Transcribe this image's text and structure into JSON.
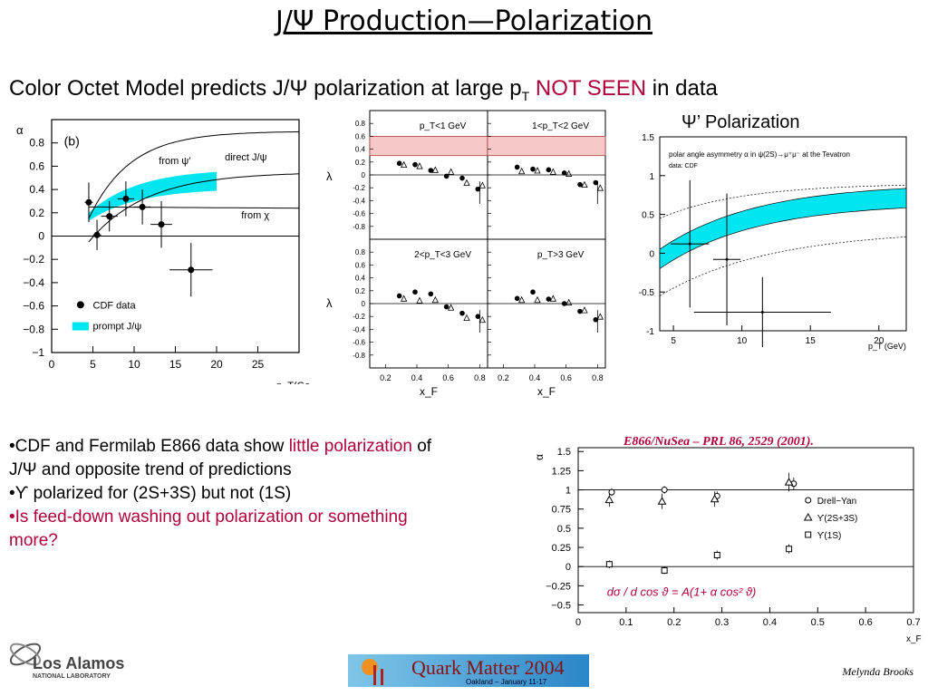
{
  "slide": {
    "title": "J/Ψ Production—Polarization",
    "subtitle_pre": "Color Octet Model predicts J/Ψ polarization at large p",
    "subtitle_sub": "T",
    "subtitle_red": "NOT SEEN",
    "subtitle_post": " in data",
    "psiprime_title": "Ψ’ Polarization",
    "author": "Melynda Brooks",
    "logo_main": "Los Alamos",
    "logo_sub": "NATIONAL LABORATORY",
    "qm_main": "Quark Matter 2004",
    "qm_sub": "Oakland – January 11-17"
  },
  "bullets": {
    "b1_pre": "•CDF and Fermilab E866 data show ",
    "b1_red": "little polarization",
    "b1_post": " of J/Ψ and opposite trend of predictions",
    "b2": "•ϒ polarized for (2S+3S) but not (1S)",
    "b3": "•Is feed-down washing out polarization or something more?"
  },
  "e866_ref": "E866/NuSea – PRL 86, 2529 (2001).",
  "colors": {
    "accent_red": "#b0003a",
    "band": "#00e5f0",
    "pink": "#f7c8c8"
  },
  "chart_data": [
    {
      "type": "scatter",
      "panel_label": "(b)",
      "ylabel": "α",
      "xlabel": "p_T(Ge",
      "xlim": [
        0,
        30
      ],
      "ylim": [
        -1,
        1
      ],
      "xticks": [
        0,
        5,
        10,
        15,
        20,
        25
      ],
      "yticks": [
        -1,
        -0.8,
        -0.6,
        -0.4,
        -0.2,
        0,
        0.2,
        0.4,
        0.6,
        0.8
      ],
      "ytick_labels": [
        "−1",
        "−0.8",
        "−0.6",
        "−0.4",
        "−0.2",
        "0",
        "0.2",
        "0.4",
        "0.6",
        "0.8"
      ],
      "legend": {
        "data": "CDF data",
        "band": "prompt J/ψ"
      },
      "curve_labels": [
        "from ψ′",
        "direct J/ψ",
        "from χ"
      ],
      "points": [
        {
          "x": 4.5,
          "y": 0.29,
          "xerr": 0.5,
          "yerr": 0.17
        },
        {
          "x": 5.5,
          "y": 0.01,
          "xerr": 0.5,
          "yerr": 0.13
        },
        {
          "x": 7.0,
          "y": 0.17,
          "xerr": 1.0,
          "yerr": 0.13
        },
        {
          "x": 9.0,
          "y": 0.32,
          "xerr": 1.0,
          "yerr": 0.15
        },
        {
          "x": 11.0,
          "y": 0.25,
          "xerr": 1.0,
          "yerr": 0.15
        },
        {
          "x": 13.3,
          "y": 0.1,
          "xerr": 1.3,
          "yerr": 0.2
        },
        {
          "x": 16.9,
          "y": -0.29,
          "xerr": 2.6,
          "yerr": 0.23
        }
      ]
    },
    {
      "type": "scatter",
      "ylabel": "λ",
      "xlabel": "x_F",
      "xlim": [
        0.1,
        0.85
      ],
      "ylim": [
        -1,
        1
      ],
      "xticks": [
        0.2,
        0.4,
        0.6,
        0.8
      ],
      "yticks": [
        -0.8,
        -0.6,
        -0.4,
        -0.2,
        0,
        0.2,
        0.4,
        0.6,
        0.8
      ],
      "panels": [
        {
          "label": "p_T<1 GeV",
          "filled": [
            [
              0.3,
              0.18
            ],
            [
              0.4,
              0.16
            ],
            [
              0.5,
              0.07
            ],
            [
              0.6,
              -0.02
            ],
            [
              0.7,
              -0.05
            ],
            [
              0.8,
              -0.22
            ]
          ],
          "open": [
            [
              0.3,
              0.16
            ],
            [
              0.4,
              0.14
            ],
            [
              0.5,
              0.08
            ],
            [
              0.6,
              0.05
            ],
            [
              0.7,
              -0.12
            ],
            [
              0.8,
              -0.16
            ]
          ]
        },
        {
          "label": "1<p_T<2 GeV",
          "filled": [
            [
              0.3,
              0.12
            ],
            [
              0.4,
              0.09
            ],
            [
              0.5,
              0.08
            ],
            [
              0.6,
              0.03
            ],
            [
              0.7,
              -0.15
            ],
            [
              0.8,
              -0.12
            ]
          ],
          "open": [
            [
              0.3,
              0.06
            ],
            [
              0.4,
              0.07
            ],
            [
              0.5,
              0.05
            ],
            [
              0.6,
              0.02
            ],
            [
              0.7,
              -0.15
            ],
            [
              0.8,
              -0.2
            ]
          ]
        },
        {
          "label": "2<p_T<3 GeV",
          "filled": [
            [
              0.3,
              0.12
            ],
            [
              0.4,
              0.18
            ],
            [
              0.5,
              0.15
            ],
            [
              0.6,
              -0.05
            ],
            [
              0.7,
              -0.15
            ],
            [
              0.8,
              -0.2
            ]
          ],
          "open": [
            [
              0.3,
              0.08
            ],
            [
              0.4,
              0.05
            ],
            [
              0.5,
              0.06
            ],
            [
              0.6,
              -0.06
            ],
            [
              0.7,
              -0.22
            ],
            [
              0.8,
              -0.25
            ]
          ]
        },
        {
          "label": "p_T>3 GeV",
          "filled": [
            [
              0.3,
              0.08
            ],
            [
              0.4,
              0.18
            ],
            [
              0.5,
              0.07
            ],
            [
              0.6,
              0.0
            ],
            [
              0.7,
              -0.12
            ],
            [
              0.8,
              -0.25
            ]
          ],
          "open": [
            [
              0.3,
              0.06
            ],
            [
              0.4,
              0.06
            ],
            [
              0.5,
              0.08
            ],
            [
              0.6,
              0.02
            ],
            [
              0.7,
              -0.1
            ],
            [
              0.8,
              -0.2
            ]
          ]
        }
      ],
      "highlight_band": [
        0.3,
        0.6
      ]
    },
    {
      "type": "scatter",
      "xlabel": "p_T (GeV)",
      "xlim": [
        4,
        22
      ],
      "ylim": [
        -1,
        1.5
      ],
      "xticks": [
        5,
        10,
        15,
        20
      ],
      "yticks": [
        -1,
        -0.5,
        0,
        0.5,
        1,
        1.5
      ],
      "ytick_labels": [
        "-1",
        "-0.5",
        "0",
        "0.5",
        "1",
        "1.5"
      ],
      "annotation_1": "polar angle asymmetry α in ψ(2S)→μ⁺μ⁻ at the Tevatron",
      "annotation_2": "data: CDF",
      "points": [
        {
          "x": 6.2,
          "y": 0.12,
          "xerr": 1.4,
          "yerr": 0.82
        },
        {
          "x": 8.9,
          "y": -0.08,
          "xerr": 1.0,
          "yerr": 0.85
        },
        {
          "x": 11.5,
          "y": -0.76,
          "xerr": 5.0,
          "yerr": 0.45
        }
      ]
    },
    {
      "type": "scatter",
      "ylabel": "α",
      "xlabel": "x_F",
      "xlim": [
        0,
        0.7
      ],
      "ylim": [
        -0.6,
        1.55
      ],
      "xticks": [
        0,
        0.1,
        0.2,
        0.3,
        0.4,
        0.5,
        0.6,
        0.7
      ],
      "yticks": [
        -0.5,
        -0.25,
        0,
        0.25,
        0.5,
        0.75,
        1,
        1.25,
        1.5
      ],
      "ytick_labels": [
        "−0.5",
        "−0.25",
        "0",
        "0.25",
        "0.5",
        "0.75",
        "1",
        "1.25",
        "1.5"
      ],
      "formula": "dσ / d cos ϑ = A(1+ α cos² ϑ)",
      "series": [
        {
          "name": "Drell−Yan",
          "marker": "circle",
          "points": [
            [
              0.07,
              0.97,
              0.05
            ],
            [
              0.18,
              1.0,
              0.05
            ],
            [
              0.29,
              0.92,
              0.06
            ],
            [
              0.45,
              1.08,
              0.08
            ]
          ]
        },
        {
          "name": "ϒ(2S+3S)",
          "marker": "triangle",
          "points": [
            [
              0.065,
              0.87,
              0.09
            ],
            [
              0.175,
              0.85,
              0.1
            ],
            [
              0.285,
              0.88,
              0.1
            ],
            [
              0.44,
              1.1,
              0.12
            ]
          ]
        },
        {
          "name": "ϒ(1S)",
          "marker": "square",
          "points": [
            [
              0.065,
              0.03,
              0.05
            ],
            [
              0.18,
              -0.05,
              0.05
            ],
            [
              0.29,
              0.15,
              0.06
            ],
            [
              0.44,
              0.23,
              0.06
            ]
          ]
        }
      ]
    }
  ]
}
